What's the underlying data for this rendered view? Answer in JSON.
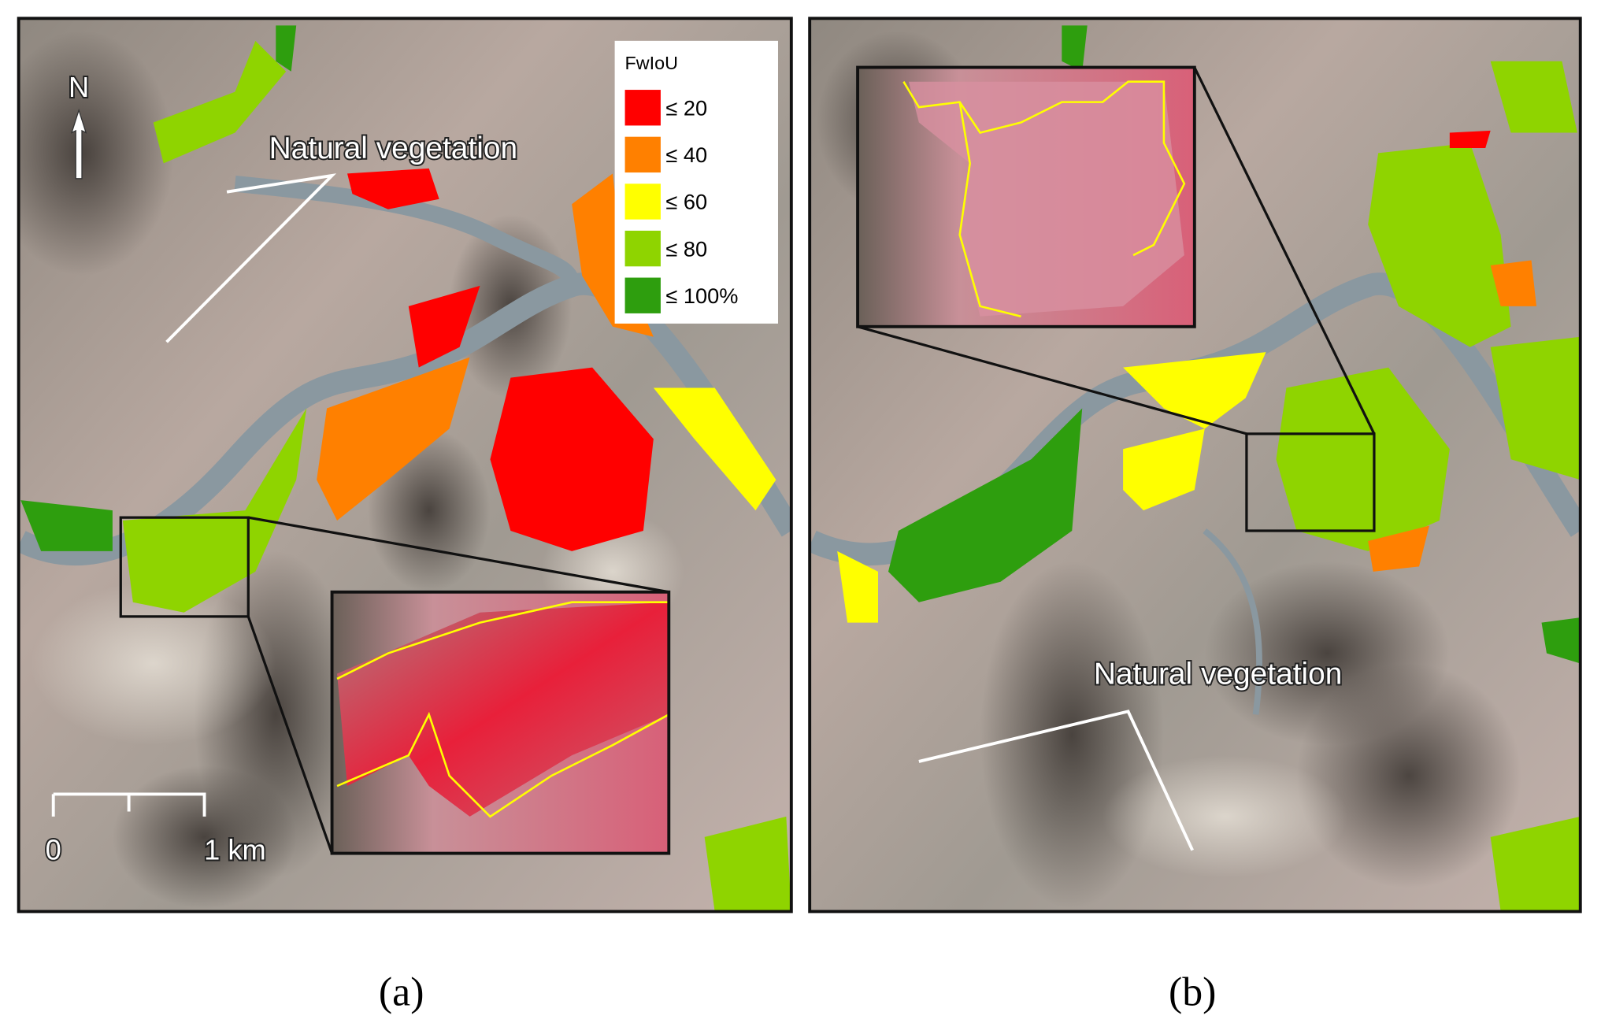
{
  "legend": {
    "title": "FwIoU",
    "items": [
      {
        "label": "≤ 20",
        "color": "#ff0000"
      },
      {
        "label": "≤ 40",
        "color": "#ff8000"
      },
      {
        "label": "≤ 60",
        "color": "#ffff00"
      },
      {
        "label": "≤ 80",
        "color": "#8fd400"
      },
      {
        "label": "≤ 100%",
        "color": "#2e9e0e"
      }
    ]
  },
  "north_arrow": "N",
  "scale_bar": {
    "labels": [
      "0",
      "1 km"
    ]
  },
  "panels": [
    {
      "label": "(a)",
      "annotation": "Natural vegetation"
    },
    {
      "label": "(b)",
      "annotation": "Natural vegetation"
    }
  ]
}
